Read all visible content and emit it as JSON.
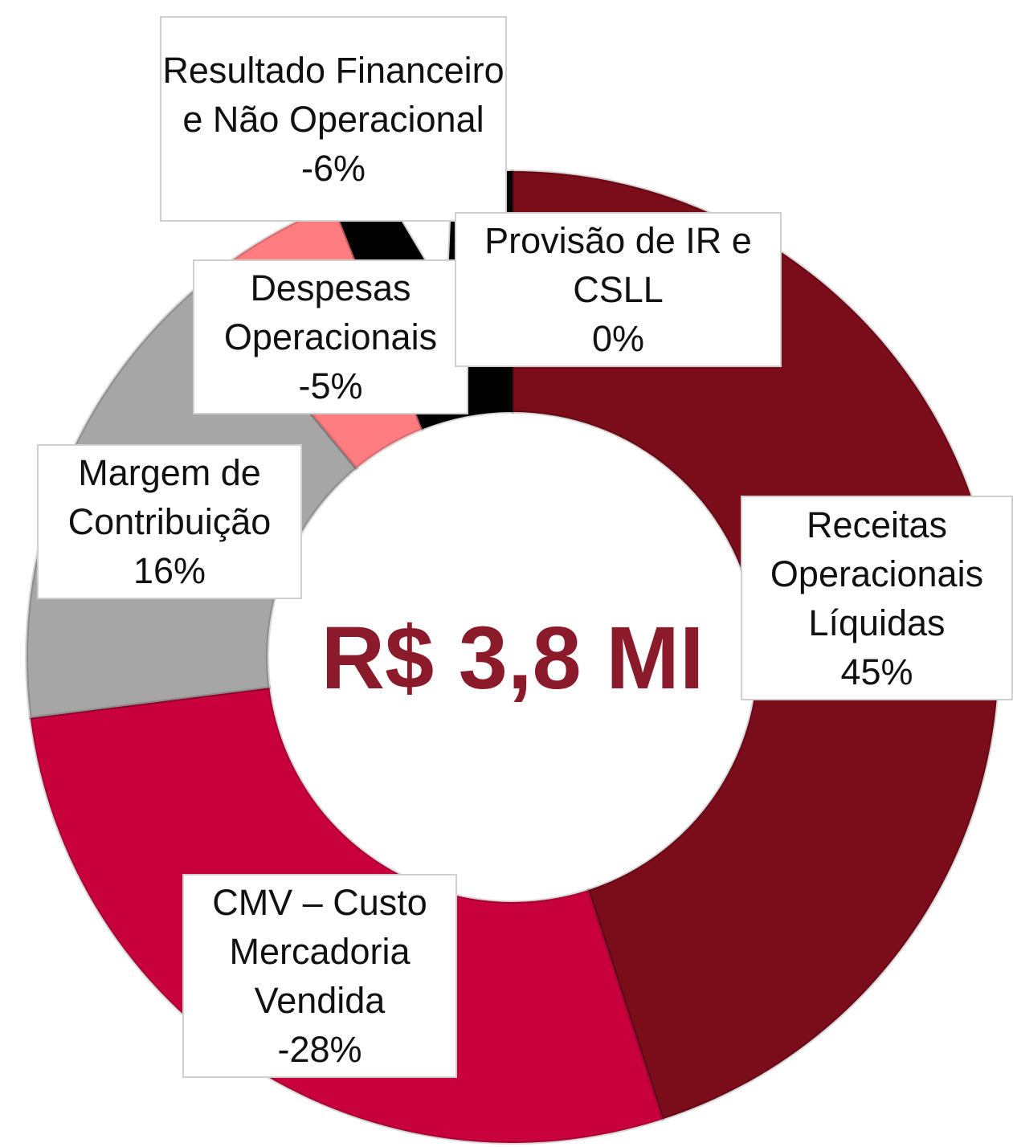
{
  "chart_data": {
    "type": "donut",
    "center_text": "R$ 3,8 MI",
    "categories": [
      "Receitas Operacionais Líquidas",
      "CMV – Custo Mercadoria Vendida",
      "Margem de Contribuição",
      "Despesas Operacionais",
      "Resultado Financeiro e Não Operacional",
      "Provisão de IR e CSLL"
    ],
    "values": [
      45,
      -28,
      16,
      -5,
      -6,
      0
    ],
    "value_labels": [
      "45%",
      "-28%",
      "16%",
      "-5%",
      "-6%",
      "0%"
    ],
    "colors": [
      "#7b0c1a",
      "#c8003c",
      "#a6a6a6",
      "#ff7c80",
      "#000000",
      "#404040"
    ]
  }
}
